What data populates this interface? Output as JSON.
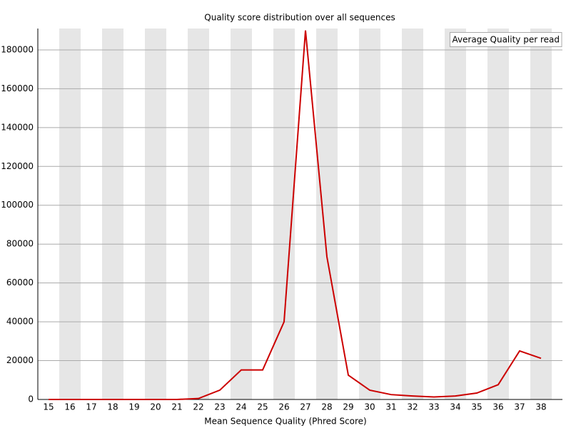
{
  "chart_data": {
    "type": "line",
    "title": "Quality score distribution over all sequences",
    "x_label": "Mean Sequence Quality (Phred Score)",
    "categories": [
      15,
      16,
      17,
      18,
      19,
      20,
      21,
      22,
      23,
      24,
      25,
      26,
      27,
      28,
      29,
      30,
      31,
      32,
      33,
      34,
      35,
      36,
      37,
      38
    ],
    "series": [
      {
        "name": "Average Quality per read",
        "color": "#cc0000",
        "values": [
          0,
          0,
          0,
          0,
          0,
          0,
          0,
          500,
          4800,
          15200,
          15200,
          40000,
          190000,
          73500,
          12500,
          4800,
          2500,
          1800,
          1300,
          1800,
          3300,
          7600,
          25000,
          21200
        ]
      }
    ],
    "ylim": [
      0,
      191000
    ],
    "yticks": [
      0,
      20000,
      40000,
      60000,
      80000,
      100000,
      120000,
      140000,
      160000,
      180000
    ],
    "grid": true,
    "legend": "upper right"
  }
}
